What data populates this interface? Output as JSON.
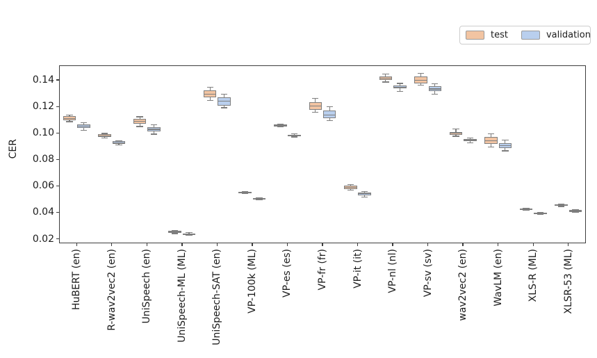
{
  "figure": {
    "ylabel": "CER",
    "colors": {
      "background": "#ffffff",
      "spine": "#3c3c3c",
      "tick_text": "#1b1b1b",
      "box_edge": "#7e7e7e",
      "legend_border": "#cdcdcd"
    }
  },
  "legend": {
    "position": "top-right",
    "items": [
      {
        "label": "test",
        "color": "#f2c4a2"
      },
      {
        "label": "validation",
        "color": "#b9cfee"
      }
    ]
  },
  "chart_data": {
    "type": "boxplot",
    "title": "",
    "xlabel": "",
    "ylabel": "CER",
    "grid": false,
    "legend_position": "upper right, outside plot",
    "ylim": [
      0.0166,
      0.1511
    ],
    "yticks": [
      0.02,
      0.04,
      0.06,
      0.08,
      0.1,
      0.12,
      0.14
    ],
    "ytick_labels": [
      "0.02",
      "0.04",
      "0.06",
      "0.08",
      "0.10",
      "0.12",
      "0.14"
    ],
    "categories": [
      "HuBERT (en)",
      "R-wav2vec2 (en)",
      "UniSpeech (en)",
      "UniSpeech-ML (ML)",
      "UniSpeech-SAT (en)",
      "VP-100k (ML)",
      "VP-es (es)",
      "VP-fr (fr)",
      "VP-it (it)",
      "VP-nl (nl)",
      "VP-sv (sv)",
      "wav2vec2 (en)",
      "WavLM (en)",
      "XLS-R (ML)",
      "XLSR-53 (ML)"
    ],
    "box_format": "[whisker_low, q1, median, q3, whisker_high]",
    "series": [
      {
        "name": "test",
        "color": "#f2c4a2",
        "edge_color": "#7e7e7e",
        "boxes": [
          [
            0.1085,
            0.1098,
            0.111,
            0.1125,
            0.1135
          ],
          [
            0.0962,
            0.097,
            0.0979,
            0.099,
            0.0996
          ],
          [
            0.1049,
            0.107,
            0.1088,
            0.1105,
            0.1122
          ],
          [
            0.024,
            0.0246,
            0.0252,
            0.0259,
            0.0264
          ],
          [
            0.1247,
            0.1268,
            0.1292,
            0.1321,
            0.1347
          ],
          [
            0.054,
            0.0545,
            0.0549,
            0.0553,
            0.0557
          ],
          [
            0.1046,
            0.1051,
            0.1057,
            0.1062,
            0.1067
          ],
          [
            0.1155,
            0.1177,
            0.1203,
            0.123,
            0.1262
          ],
          [
            0.0568,
            0.0578,
            0.059,
            0.0601,
            0.0611
          ],
          [
            0.1385,
            0.1402,
            0.1415,
            0.1429,
            0.1446
          ],
          [
            0.136,
            0.1375,
            0.1397,
            0.1425,
            0.1452
          ],
          [
            0.0975,
            0.0988,
            0.0998,
            0.1009,
            0.1032
          ],
          [
            0.0895,
            0.0918,
            0.0942,
            0.0968,
            0.0995
          ],
          [
            0.0415,
            0.042,
            0.0424,
            0.0428,
            0.0431
          ],
          [
            0.0444,
            0.0449,
            0.0455,
            0.0459,
            0.0462
          ]
        ]
      },
      {
        "name": "validation",
        "color": "#b9cfee",
        "edge_color": "#7e7e7e",
        "boxes": [
          [
            0.102,
            0.104,
            0.1052,
            0.1065,
            0.1076
          ],
          [
            0.091,
            0.0917,
            0.0925,
            0.0936,
            0.0942
          ],
          [
            0.0991,
            0.101,
            0.1028,
            0.1044,
            0.1063
          ],
          [
            0.0226,
            0.0231,
            0.0236,
            0.0242,
            0.0247
          ],
          [
            0.119,
            0.1207,
            0.124,
            0.1268,
            0.1295
          ],
          [
            0.0494,
            0.0498,
            0.0503,
            0.0508,
            0.0512
          ],
          [
            0.097,
            0.0975,
            0.0981,
            0.0987,
            0.0992
          ],
          [
            0.1093,
            0.1114,
            0.1137,
            0.1167,
            0.1198
          ],
          [
            0.0514,
            0.0528,
            0.054,
            0.0549,
            0.0556
          ],
          [
            0.1312,
            0.1335,
            0.1346,
            0.1359,
            0.1374
          ],
          [
            0.1295,
            0.1315,
            0.1333,
            0.1356,
            0.1371
          ],
          [
            0.0926,
            0.0936,
            0.0944,
            0.0952,
            0.0962
          ],
          [
            0.0865,
            0.0885,
            0.0905,
            0.0925,
            0.0945
          ],
          [
            0.0382,
            0.0386,
            0.0391,
            0.0395,
            0.0398
          ],
          [
            0.04,
            0.0405,
            0.0412,
            0.0418,
            0.0422
          ]
        ]
      }
    ]
  }
}
